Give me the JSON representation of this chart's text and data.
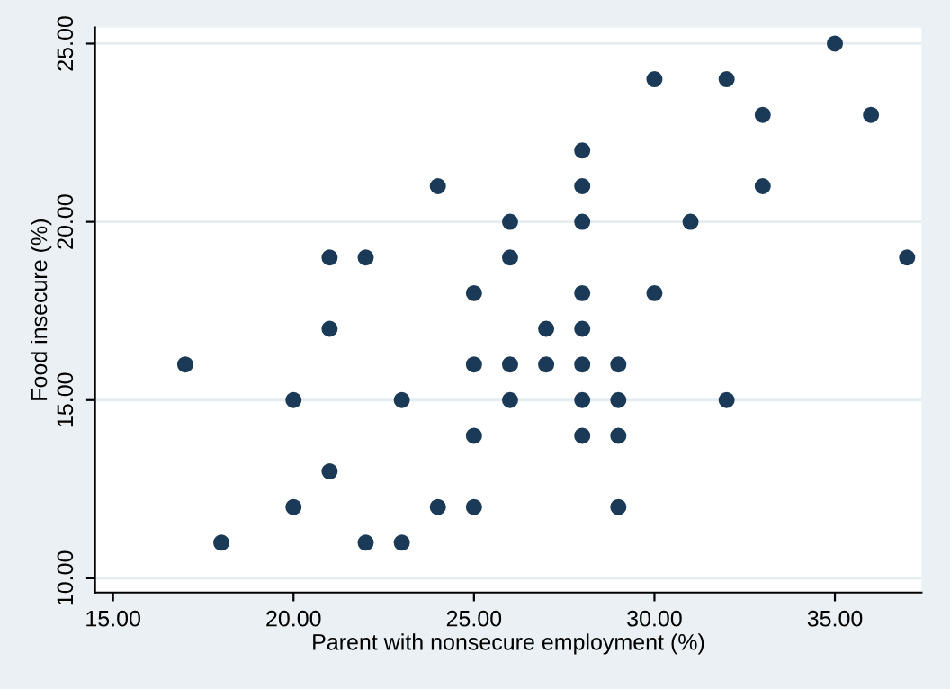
{
  "chart_data": {
    "type": "scatter",
    "xlabel": "Parent with nonsecure employment (%)",
    "ylabel": "Food insecure (%)",
    "x": [
      17,
      18,
      20,
      20,
      21,
      21,
      21,
      22,
      22,
      23,
      23,
      24,
      24,
      25,
      25,
      25,
      25,
      26,
      26,
      26,
      26,
      27,
      27,
      28,
      28,
      28,
      28,
      28,
      28,
      28,
      28,
      29,
      29,
      29,
      29,
      30,
      30,
      31,
      32,
      32,
      33,
      33,
      35,
      36,
      37
    ],
    "values": [
      16,
      11,
      15,
      12,
      19,
      17,
      13,
      19,
      11,
      15,
      11,
      21,
      12,
      18,
      16,
      14,
      12,
      20,
      19,
      16,
      15,
      17,
      16,
      22,
      21,
      20,
      18,
      17,
      16,
      15,
      14,
      16,
      15,
      14,
      12,
      24,
      18,
      20,
      24,
      15,
      23,
      21,
      25,
      23,
      19
    ],
    "color": "#1b3a57",
    "marker": "circle",
    "xlim": [
      14.5,
      37.4
    ],
    "ylim": [
      9.6,
      25.45
    ],
    "xticks": [
      {
        "value": 15,
        "label": "15.00"
      },
      {
        "value": 20,
        "label": "20.00"
      },
      {
        "value": 25,
        "label": "25.00"
      },
      {
        "value": 30,
        "label": "30.00"
      },
      {
        "value": 35,
        "label": "35.00"
      }
    ],
    "yticks": [
      {
        "value": 10,
        "label": "10.00"
      },
      {
        "value": 15,
        "label": "15.00"
      },
      {
        "value": 20,
        "label": "20.00"
      },
      {
        "value": 25,
        "label": "25.00"
      }
    ],
    "grid": "y"
  }
}
